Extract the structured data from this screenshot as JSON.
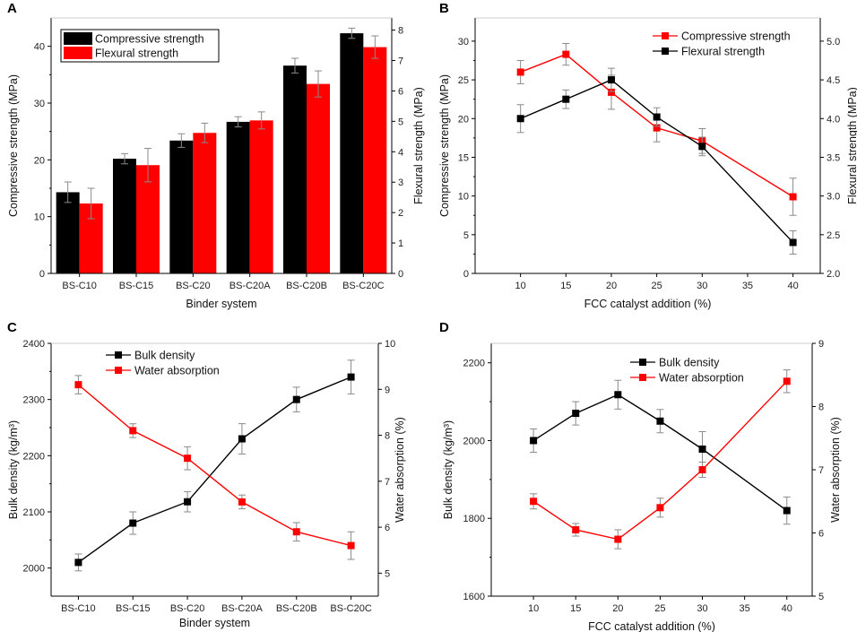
{
  "colors": {
    "black": "#000000",
    "red": "#ff0000",
    "error": "#8a8a8a",
    "axis": "#000000"
  },
  "chart_data": [
    {
      "panel": "A",
      "type": "bar",
      "categories": [
        "BS-C10",
        "BS-C15",
        "BS-C20",
        "BS-C20A",
        "BS-C20B",
        "BS-C20C"
      ],
      "xlabel": "Binder system",
      "ylabel_left": "Compressive strength (MPa)",
      "ylabel_right": "Flexural strength (MPa)",
      "ylim_left": [
        0,
        45
      ],
      "ylim_right": [
        0,
        8.4
      ],
      "yticks_left": [
        0,
        10,
        20,
        30,
        40
      ],
      "yticks_right": [
        0,
        1,
        2,
        3,
        4,
        5,
        6,
        7,
        8
      ],
      "legend_position": "top-left",
      "series": [
        {
          "name": "Compressive strength",
          "axis": "left",
          "color": "#000000",
          "values": [
            14.3,
            20.2,
            23.4,
            26.7,
            36.6,
            42.3
          ],
          "errors": [
            1.8,
            0.9,
            1.2,
            0.9,
            1.3,
            0.9
          ]
        },
        {
          "name": "Flexural strength",
          "axis": "right",
          "color": "#ff0000",
          "values": [
            2.3,
            3.56,
            4.62,
            5.03,
            6.23,
            7.44
          ],
          "errors": [
            0.5,
            0.55,
            0.32,
            0.28,
            0.43,
            0.37
          ]
        }
      ]
    },
    {
      "panel": "B",
      "type": "line",
      "x": [
        10,
        15,
        20,
        25,
        30,
        40
      ],
      "xlabel": "FCC catalyst addition (%)",
      "ylabel_left": "Compressive strength (MPa)",
      "ylabel_right": "Flexural strength (MPa)",
      "xlim": [
        5,
        43
      ],
      "xticks": [
        10,
        15,
        20,
        25,
        30,
        35,
        40
      ],
      "ylim_left": [
        0,
        33
      ],
      "ylim_right": [
        2,
        5.3
      ],
      "yticks_left": [
        0,
        5,
        10,
        15,
        20,
        25,
        30
      ],
      "yticks_right": [
        2.0,
        2.5,
        3.0,
        3.5,
        4.0,
        4.5,
        5.0
      ],
      "legend_position": "top-right",
      "series": [
        {
          "name": "Compressive strength",
          "axis": "left",
          "color": "#ff0000",
          "values": [
            26.0,
            28.3,
            23.4,
            18.8,
            17.1,
            9.9
          ],
          "errors": [
            1.5,
            1.4,
            2.2,
            1.8,
            1.6,
            2.4
          ]
        },
        {
          "name": "Flexural strength",
          "axis": "right",
          "color": "#000000",
          "values": [
            4.0,
            4.25,
            4.5,
            4.02,
            3.64,
            2.4
          ],
          "errors": [
            0.18,
            0.12,
            0.15,
            0.12,
            0.12,
            0.15
          ]
        }
      ]
    },
    {
      "panel": "C",
      "type": "line",
      "categories": [
        "BS-C10",
        "BS-C15",
        "BS-C20",
        "BS-C20A",
        "BS-C20B",
        "BS-C20C"
      ],
      "xlabel": "Binder system",
      "ylabel_left": "Bulk density (kg/m³)",
      "ylabel_right": "Water absorption (%)",
      "ylim_left": [
        1950,
        2400
      ],
      "ylim_right": [
        4.5,
        10
      ],
      "yticks_left": [
        2000,
        2100,
        2200,
        2300,
        2400
      ],
      "yticks_right": [
        5,
        6,
        7,
        8,
        9,
        10
      ],
      "legend_position": "top-left",
      "series": [
        {
          "name": "Bulk density",
          "axis": "left",
          "color": "#000000",
          "values": [
            2010,
            2080,
            2118,
            2230,
            2300,
            2340
          ],
          "errors": [
            15,
            20,
            18,
            27,
            22,
            30
          ]
        },
        {
          "name": "Water absorption",
          "axis": "right",
          "color": "#ff0000",
          "values": [
            9.1,
            8.1,
            7.5,
            6.55,
            5.9,
            5.6
          ],
          "errors": [
            0.2,
            0.15,
            0.25,
            0.15,
            0.2,
            0.3
          ]
        }
      ]
    },
    {
      "panel": "D",
      "type": "line",
      "x": [
        10,
        15,
        20,
        25,
        30,
        40
      ],
      "xlabel": "FCC catalyst addition (%)",
      "ylabel_left": "Bulk density (kg/m³)",
      "ylabel_right": "Water absorption (%)",
      "xlim": [
        5,
        43
      ],
      "xticks": [
        10,
        15,
        20,
        25,
        30,
        35,
        40
      ],
      "ylim_left": [
        1600,
        2250
      ],
      "ylim_right": [
        5,
        9
      ],
      "yticks_left": [
        1600,
        1800,
        2000,
        2200
      ],
      "yticks_right": [
        5,
        6,
        7,
        8,
        9
      ],
      "legend_position": "top-center",
      "series": [
        {
          "name": "Bulk density",
          "axis": "left",
          "color": "#000000",
          "values": [
            2000,
            2070,
            2118,
            2050,
            1978,
            1820
          ],
          "errors": [
            30,
            30,
            37,
            30,
            45,
            35
          ]
        },
        {
          "name": "Water absorption",
          "axis": "right",
          "color": "#ff0000",
          "values": [
            6.5,
            6.05,
            5.9,
            6.4,
            7.0,
            8.4
          ],
          "errors": [
            0.12,
            0.1,
            0.15,
            0.15,
            0.12,
            0.18
          ]
        }
      ]
    }
  ]
}
